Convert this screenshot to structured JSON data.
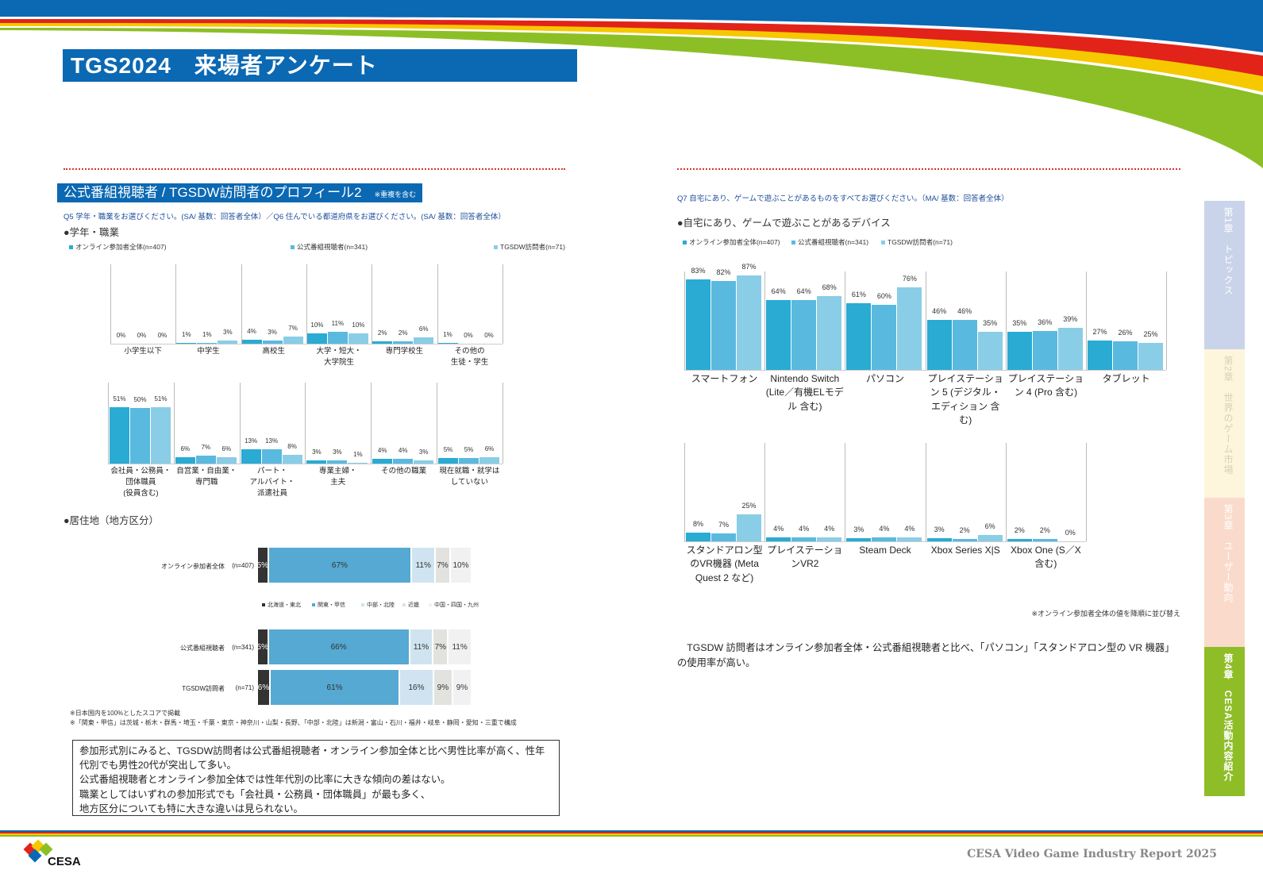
{
  "header": {
    "title": "TGS2024　来場者アンケート"
  },
  "left": {
    "section_title": "公式番組視聴者 / TGSDW訪問者のプロフィール2",
    "section_note": "※重複を含む",
    "question": "Q5 学年・職業をお選びください。(SA/ 基数：回答者全体）／Q6 住んでいる都道府県をお選びください。(SA/ 基数：回答者全体）",
    "occupation_heading": "●学年・職業",
    "region_heading": "●居住地（地方区分）",
    "notes": [
      "※日本国内を100%としたスコアで掲載",
      "※「関東・甲信」は茨城・栃木・群馬・埼玉・千葉・東京・神奈川・山梨・長野、「中部・北陸」は新潟・富山・石川・福井・岐阜・静岡・愛知・三重で構成"
    ],
    "summary_lines": [
      "参加形式別にみると、TGSDW訪問者は公式番組視聴者・オンライン参加全体と比べ男性比率が高く、性年",
      "代別でも男性20代が突出して多い。",
      "公式番組視聴者とオンライン参加全体では性年代別の比率に大きな傾向の差はない。",
      "職業としてはいずれの参加形式でも「会社員・公務員・団体職員」が最も多く、",
      "地方区分についても特に大きな違いは見られない。"
    ]
  },
  "right": {
    "question": "Q7 自宅にあり、ゲームで遊ぶことがあるものをすべてお選びください。（MA/ 基数：回答者全体）",
    "device_heading": "●自宅にあり、ゲームで遊ぶことがあるデバイス",
    "sort_note": "※オンライン参加者全体の値を降順に並び替え",
    "summary": "　TGSDW 訪問者はオンライン参加者全体・公式番組視聴者と比べ、「パソコン」「スタンドアロン型の VR 機器」の使用率が高い。"
  },
  "sidebar": {
    "tabs": [
      {
        "label": "第1章　トピックス",
        "bg": "#c9d4ea",
        "fg": "#ffffff"
      },
      {
        "label": "第2章　世界のゲーム市場",
        "bg": "#fdf5dc",
        "fg": "#d8d0b8"
      },
      {
        "label": "第3章　ユーザー動向",
        "bg": "#fadbcb",
        "fg": "#ffffff"
      },
      {
        "label": "第4章　CESA活動内容紹介",
        "bg": "#8fbd27",
        "fg": "#ffffff"
      }
    ]
  },
  "footer": {
    "logo_text": "CESA",
    "report_title": "CESA Video Game Industry Report 2025"
  },
  "colors": {
    "s1": "#29abd4",
    "s2": "#5ab9df",
    "s3": "#8acde6",
    "brand_blue": "#0b68b3"
  },
  "chart_data": [
    {
      "type": "bar",
      "title": "学年・職業",
      "series_names": [
        "オンライン参加者全体(n=407)",
        "公式番組視聴者(n=341)",
        "TGSDW訪問者(n=71)"
      ],
      "rows": [
        {
          "categories": [
            "小学生以下",
            "中学生",
            "高校生",
            "大学・短大・\n大学院生",
            "専門学校生",
            "その他の\n生徒・学生"
          ],
          "series": [
            [
              0,
              1,
              4,
              10,
              2,
              1
            ],
            [
              0,
              1,
              3,
              11,
              2,
              0
            ],
            [
              0,
              3,
              7,
              10,
              6,
              0
            ]
          ]
        },
        {
          "categories": [
            "会社員・公務員・\n団体職員\n(役員含む)",
            "自営業・自由業・\n専門職",
            "パート・\nアルバイト・\n派遣社員",
            "専業主婦・\n主夫",
            "その他の職業",
            "現在就職・就学は\nしていない"
          ],
          "series": [
            [
              51,
              6,
              13,
              3,
              4,
              5
            ],
            [
              50,
              7,
              13,
              3,
              4,
              5
            ],
            [
              51,
              6,
              8,
              1,
              3,
              6
            ]
          ]
        }
      ],
      "unit": "%"
    },
    {
      "type": "bar",
      "title": "居住地（地方区分）",
      "stacked": true,
      "legend": [
        "北海道・東北",
        "関東・甲信",
        "中部・北陸",
        "近畿",
        "中国・四国・九州"
      ],
      "rows": [
        {
          "label": "オンライン参加者全体",
          "n": "(n=407)",
          "values": [
            5,
            67,
            11,
            7,
            10
          ]
        },
        {
          "label": "公式番組視聴者",
          "n": "(n=341)",
          "values": [
            5,
            66,
            11,
            7,
            11
          ]
        },
        {
          "label": "TGSDW訪問者",
          "n": "(n=71)",
          "values": [
            6,
            61,
            16,
            9,
            9
          ]
        }
      ],
      "unit": "%"
    },
    {
      "type": "bar",
      "title": "自宅にあり、ゲームで遊ぶことがあるデバイス",
      "series_names": [
        "オンライン参加者全体(n=407)",
        "公式番組視聴者(n=341)",
        "TGSDW訪問者(n=71)"
      ],
      "rows": [
        {
          "categories": [
            "スマートフォン",
            "Nintendo Switch\n(Lite／有機ELモデ\nル 含む)",
            "パソコン",
            "プレイステーショ\nン 5 (デジタル・\nエディション 含む)",
            "プレイステーショ\nン 4 (Pro 含む)",
            "タブレット"
          ],
          "series": [
            [
              83,
              64,
              61,
              46,
              35,
              27
            ],
            [
              82,
              64,
              60,
              46,
              36,
              26
            ],
            [
              87,
              68,
              76,
              35,
              39,
              25
            ]
          ]
        },
        {
          "categories": [
            "スタンドアロン型\nのVR機器 (Meta\nQuest 2 など)",
            "プレイステーショ\nンVR2",
            "Steam Deck",
            "Xbox Series X|S",
            "Xbox One (S／X\n含む)"
          ],
          "series": [
            [
              8,
              4,
              3,
              3,
              2
            ],
            [
              7,
              4,
              4,
              2,
              2
            ],
            [
              25,
              4,
              4,
              6,
              0
            ]
          ]
        }
      ],
      "unit": "%"
    }
  ]
}
